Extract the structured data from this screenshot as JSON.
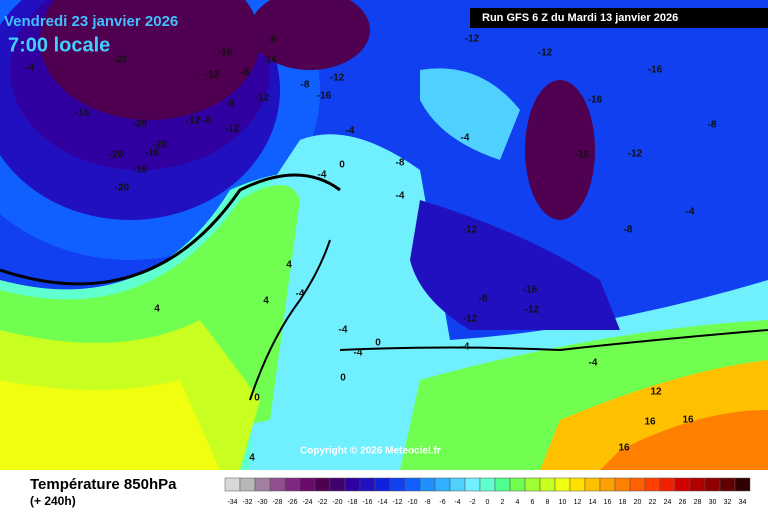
{
  "header": {
    "date": "Vendredi 23 janvier 2026",
    "time": "7:00 locale",
    "run": "Run GFS 6 Z du Mardi 13 janvier 2026"
  },
  "copyright": "Copyright © 2026 Meteociel.fr",
  "footer": {
    "title": "Température 850hPa",
    "lead": "(+ 240h)"
  },
  "legend": {
    "ticks": [
      -34,
      -32,
      -30,
      -28,
      -26,
      -24,
      -22,
      -20,
      -18,
      -16,
      -14,
      -12,
      -10,
      -8,
      -6,
      -4,
      -2,
      0,
      2,
      4,
      6,
      8,
      10,
      12,
      14,
      16,
      18,
      20,
      22,
      24,
      26,
      28,
      30,
      32,
      34
    ],
    "colors": [
      "#d8d8d8",
      "#b8b8b8",
      "#a080a0",
      "#905090",
      "#802880",
      "#6a0a6a",
      "#500050",
      "#400070",
      "#3000a0",
      "#2010c0",
      "#1020e0",
      "#1040f0",
      "#1060ff",
      "#2090ff",
      "#30b0ff",
      "#50d0ff",
      "#70f0ff",
      "#60ffd0",
      "#50ff90",
      "#70ff50",
      "#a0ff30",
      "#c8ff20",
      "#f0ff10",
      "#ffe000",
      "#ffc000",
      "#ffa000",
      "#ff8000",
      "#ff6000",
      "#ff4000",
      "#f02000",
      "#d00000",
      "#b00000",
      "#900000",
      "#600000",
      "#300000"
    ]
  },
  "map": {
    "labels": [
      -16,
      -12,
      -8,
      -16,
      -8,
      -12,
      -8,
      -12,
      -12,
      -8,
      -20,
      -16,
      -20,
      -20,
      -16,
      -20,
      -16,
      -20,
      -4,
      -8,
      -12,
      -16,
      -12,
      -12,
      -16,
      -16,
      -16,
      -12,
      -8,
      -4,
      -8,
      -4,
      -4,
      0,
      -4,
      -12,
      -8,
      -4,
      -16,
      -12,
      -12,
      -8,
      -4,
      -4,
      4,
      4,
      4,
      -4,
      -4,
      -4,
      0,
      0,
      0,
      16,
      16,
      16,
      12,
      4
    ]
  }
}
